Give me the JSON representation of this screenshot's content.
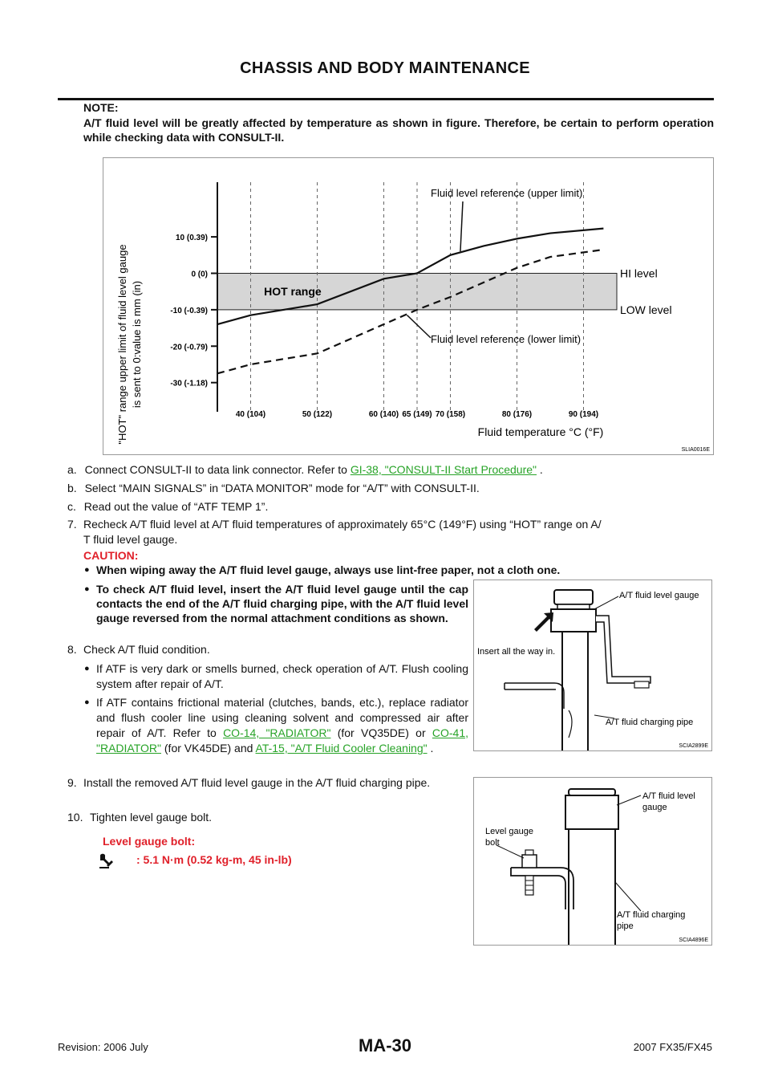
{
  "header": {
    "title": "CHASSIS AND BODY MAINTENANCE"
  },
  "note": {
    "label": "NOTE:",
    "text": "A/T fluid level will be greatly affected by temperature as shown in figure. Therefore, be certain to perform operation while checking data with CONSULT-II."
  },
  "chart_data": {
    "type": "line",
    "ylabel_line1": "\"HOT\" range upper limit of fluid level gauge",
    "ylabel_line2": "is sent to 0:value is mm (in)",
    "xlabel": "Fluid temperature °C (°F)",
    "x_ticks": [
      "40 (104)",
      "50 (122)",
      "60 (140)",
      "65 (149)",
      "70 (158)",
      "80 (176)",
      "90 (194)"
    ],
    "x_tick_values": [
      40,
      50,
      60,
      65,
      70,
      80,
      90
    ],
    "y_ticks": [
      "10 (0.39)",
      "0 (0)",
      "-10 (-0.39)",
      "-20 (-0.79)",
      "-30 (-1.18)"
    ],
    "y_tick_values": [
      10,
      0,
      -10,
      -20,
      -30
    ],
    "xlim": [
      35,
      95
    ],
    "ylim": [
      -38,
      25
    ],
    "hot_range": {
      "label": "HOT range",
      "from": -10,
      "to": 0
    },
    "hi_level_label": "HI level",
    "low_level_label": "LOW level",
    "series": [
      {
        "name": "Fluid level reference (upper limit)",
        "style": "solid",
        "x": [
          35,
          40,
          50,
          60,
          65,
          70,
          75,
          80,
          85,
          93
        ],
        "y": [
          -14,
          -11.5,
          -8.5,
          -1.5,
          0,
          5,
          7.5,
          9.5,
          11,
          12.3
        ]
      },
      {
        "name": "Fluid level reference (lower limit)",
        "style": "dashed",
        "x": [
          35,
          40,
          50,
          60,
          65,
          70,
          75,
          80,
          85,
          93
        ],
        "y": [
          -27.5,
          -25,
          -22,
          -14,
          -10,
          -6.5,
          -2.5,
          1.5,
          4.5,
          6.5
        ]
      }
    ],
    "figure_id": "SLIA0016E"
  },
  "steps": {
    "a": {
      "num": "a.",
      "text_before": "Connect CONSULT-II to data link connector. Refer to ",
      "link": "GI-38, \"CONSULT-II Start Procedure\"",
      "text_after": " ."
    },
    "b": {
      "num": "b.",
      "text": "Select “MAIN SIGNALS” in “DATA MONITOR” mode for “A/T” with CONSULT-II."
    },
    "c": {
      "num": "c.",
      "text": "Read out the value of “ATF TEMP 1”."
    },
    "s7": {
      "num": "7.",
      "line1": "Recheck A/T fluid level at A/T fluid temperatures of approximately 65°C (149°F) using “HOT” range on A/",
      "line2": "T fluid level gauge."
    },
    "caution_label": "CAUTION:",
    "caution_1": "When wiping away the A/T fluid level gauge, always use lint-free paper, not a cloth one.",
    "caution_2": "To check A/T fluid level, insert the A/T fluid level gauge until the cap contacts the end of the A/T fluid charging pipe, with the A/T fluid level gauge reversed from the normal attachment conditions as shown.",
    "s8": {
      "num": "8.",
      "text": "Check A/T fluid condition."
    },
    "s8_b1": "If ATF is very dark or smells burned, check operation of A/T. Flush cooling system after repair of A/T.",
    "s8_b2": {
      "t1": "If ATF contains frictional material (clutches, bands, etc.), replace radiator and flush cooler line using cleaning solvent and compressed air after repair of A/T. Refer to ",
      "link1": "CO-14, \"RADIATOR\"",
      "t2": " (for VQ35DE) or ",
      "link2": "CO-41, \"RADIATOR\"",
      "t3": " (for VK45DE) and ",
      "link3": "AT-15, \"A/T Fluid Cooler Cleaning\"",
      "t4": " ."
    },
    "s9": {
      "num": "9.",
      "text": "Install the removed A/T fluid level gauge in the A/T fluid charging pipe."
    },
    "s10": {
      "num": "10.",
      "text": "Tighten level gauge bolt."
    },
    "spec_label": "Level gauge bolt:",
    "spec_value": ": 5.1 N·m (0.52 kg-m, 45 in-lb)"
  },
  "figure2": {
    "label_gauge": "A/T fluid level gauge",
    "label_insert": "Insert all the way in.",
    "label_pipe": "A/T fluid charging pipe",
    "figure_id": "SCIA2899E"
  },
  "figure3": {
    "label_gauge_l1": "A/T fluid level",
    "label_gauge_l2": "gauge",
    "label_bolt_l1": "Level gauge",
    "label_bolt_l2": "bolt",
    "label_pipe_l1": "A/T fluid charging",
    "label_pipe_l2": "pipe",
    "figure_id": "SCIA4896E"
  },
  "footer": {
    "revision": "Revision: 2006 July",
    "page": "MA-30",
    "model": "2007 FX35/FX45"
  }
}
